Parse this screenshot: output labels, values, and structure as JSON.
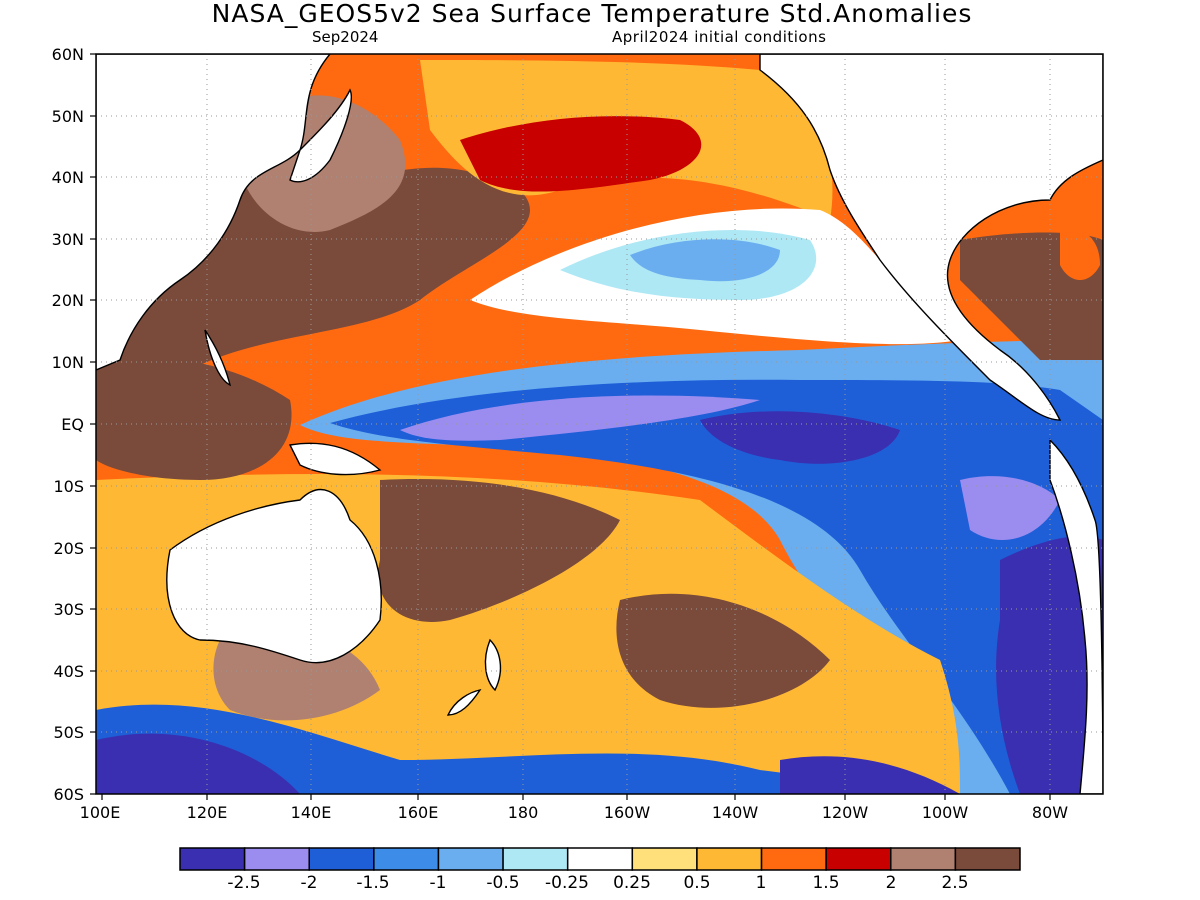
{
  "title": "NASA_GEOS5v2 Sea Surface Temperature Std.Anomalies",
  "subtitle_left": "Sep2024",
  "subtitle_right": "April2024 initial conditions",
  "lat_labels": [
    "60N",
    "50N",
    "40N",
    "30N",
    "20N",
    "10N",
    "EQ",
    "10S",
    "20S",
    "30S",
    "40S",
    "50S",
    "60S"
  ],
  "lon_labels": [
    "100E",
    "120E",
    "140E",
    "160E",
    "180",
    "160W",
    "140W",
    "120W",
    "100W",
    "80W"
  ],
  "colorbar": {
    "levels": [
      "-2.5",
      "-2",
      "-1.5",
      "-1",
      "-0.5",
      "-0.25",
      "0.25",
      "0.5",
      "1",
      "1.5",
      "2",
      "2.5"
    ],
    "colors": [
      "#3a2fb0",
      "#9b8cf0",
      "#1e5fd8",
      "#3d8ce8",
      "#6aaef0",
      "#aee8f5",
      "#ffffff",
      "#ffe07a",
      "#ffb833",
      "#ff6a10",
      "#c80000",
      "#b08070",
      "#7a4a3a"
    ]
  },
  "palette": {
    "land": "#ffffff",
    "coast": "#000000",
    "grid": "#999999"
  }
}
